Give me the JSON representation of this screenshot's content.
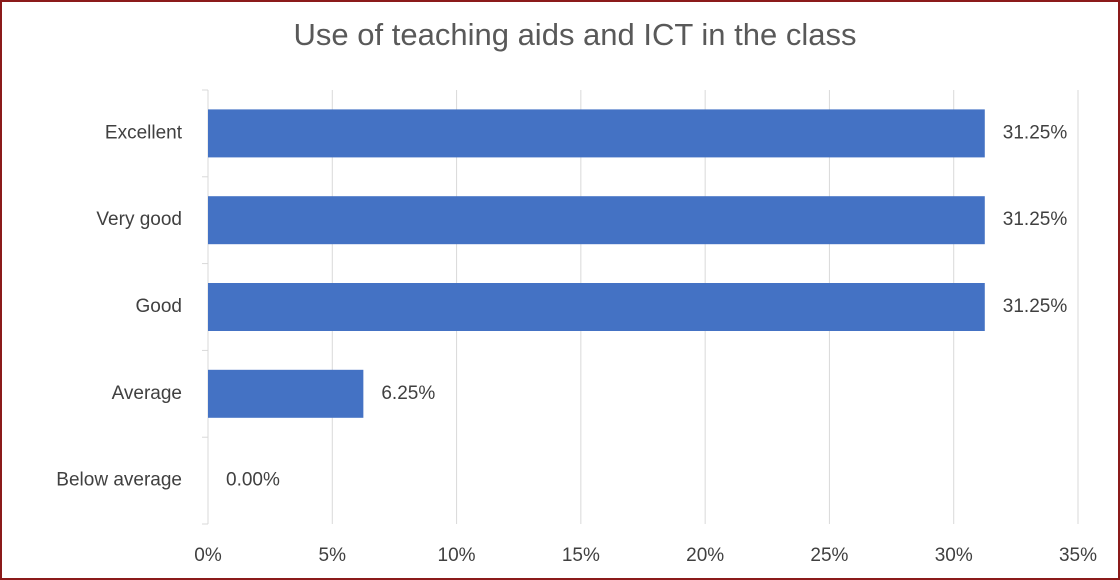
{
  "chart_data": {
    "type": "bar",
    "orientation": "horizontal",
    "title": "Use of teaching aids and ICT in the class",
    "categories": [
      "Excellent",
      "Very good",
      "Good",
      "Average",
      "Below average"
    ],
    "values": [
      31.25,
      31.25,
      31.25,
      6.25,
      0
    ],
    "value_labels": [
      "31.25%",
      "31.25%",
      "31.25%",
      "6.25%",
      "0.00%"
    ],
    "color": "#4472c4",
    "xlim": [
      0,
      35
    ],
    "xticks": [
      {
        "value": 0,
        "label": "0%"
      },
      {
        "value": 5,
        "label": "5%"
      },
      {
        "value": 10,
        "label": "10%"
      },
      {
        "value": 15,
        "label": "15%"
      },
      {
        "value": 20,
        "label": "20%"
      },
      {
        "value": 25,
        "label": "25%"
      },
      {
        "value": 30,
        "label": "30%"
      },
      {
        "value": 35,
        "label": "35%"
      }
    ],
    "grid": true
  }
}
